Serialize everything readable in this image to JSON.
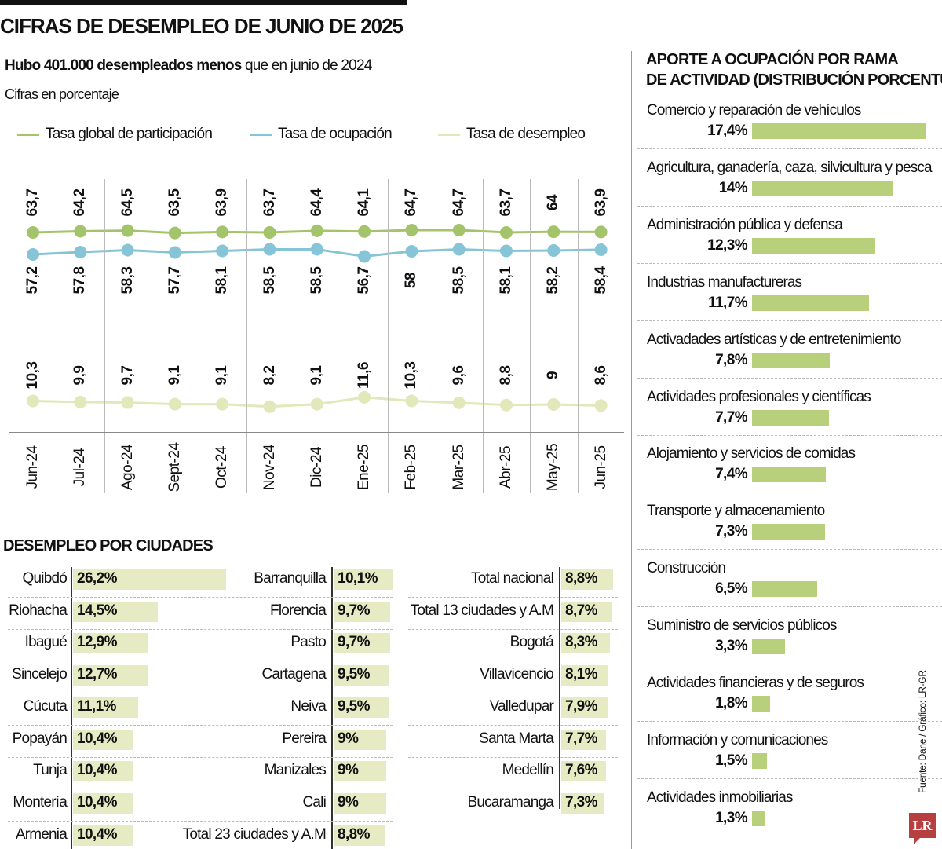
{
  "header": {
    "title": "CIFRAS DE DESEMPLEO DE JUNIO DE 2025",
    "subtitle_bold": "Hubo 401.000 desempleados menos",
    "subtitle_rest": " que en junio de 2024",
    "note": "Cifras en porcentaje"
  },
  "chart_data": [
    {
      "type": "line",
      "title": "",
      "categories": [
        "Jun-24",
        "Jul-24",
        "Ago-24",
        "Sept-24",
        "Oct-24",
        "Nov-24",
        "Dic-24",
        "Ene-25",
        "Feb-25",
        "Mar-25",
        "Abr-25",
        "May-25",
        "Jun-25"
      ],
      "legend_placement": "top",
      "grid": "vertical",
      "series": [
        {
          "name": "Tasa global de participación",
          "color": "#a3c46a",
          "values": [
            63.7,
            64.2,
            64.5,
            63.5,
            63.9,
            63.7,
            64.4,
            64.1,
            64.7,
            64.7,
            63.7,
            64,
            63.9
          ],
          "labels": [
            "63,7",
            "64,2",
            "64,5",
            "63,5",
            "63,9",
            "63,7",
            "64,4",
            "64,1",
            "64,7",
            "64,7",
            "63,7",
            "64",
            "63,9"
          ]
        },
        {
          "name": "Tasa de ocupación",
          "color": "#86c4d8",
          "values": [
            57.2,
            57.8,
            58.3,
            57.7,
            58.1,
            58.5,
            58.5,
            56.7,
            58,
            58.5,
            58.1,
            58.2,
            58.4
          ],
          "labels": [
            "57,2",
            "57,8",
            "58,3",
            "57,7",
            "58,1",
            "58,5",
            "58,5",
            "56,7",
            "58",
            "58,5",
            "58,1",
            "58,2",
            "58,4"
          ]
        },
        {
          "name": "Tasa de desempleo",
          "color": "#e3e8bb",
          "values": [
            10.3,
            9.9,
            9.7,
            9.1,
            9.1,
            8.2,
            9.1,
            11.6,
            10.3,
            9.6,
            8.8,
            9,
            8.6
          ],
          "labels": [
            "10,3",
            "9,9",
            "9,7",
            "9,1",
            "9,1",
            "8,2",
            "9,1",
            "11,6",
            "10,3",
            "9,6",
            "8,8",
            "9",
            "8,6"
          ]
        }
      ]
    },
    {
      "type": "bar",
      "title": "DESEMPLEO POR CIUDADES",
      "color": "#e6ebc3",
      "columns": [
        [
          {
            "name": "Quibdó",
            "value": 26.2,
            "label": "26,2%"
          },
          {
            "name": "Riohacha",
            "value": 14.5,
            "label": "14,5%"
          },
          {
            "name": "Ibagué",
            "value": 12.9,
            "label": "12,9%"
          },
          {
            "name": "Sincelejo",
            "value": 12.7,
            "label": "12,7%"
          },
          {
            "name": "Cúcuta",
            "value": 11.1,
            "label": "11,1%"
          },
          {
            "name": "Popayán",
            "value": 10.4,
            "label": "10,4%"
          },
          {
            "name": "Tunja",
            "value": 10.4,
            "label": "10,4%"
          },
          {
            "name": "Montería",
            "value": 10.4,
            "label": "10,4%"
          },
          {
            "name": "Armenia",
            "value": 10.4,
            "label": "10,4%"
          }
        ],
        [
          {
            "name": "Barranquilla",
            "value": 10.1,
            "label": "10,1%"
          },
          {
            "name": "Florencia",
            "value": 9.7,
            "label": "9,7%"
          },
          {
            "name": "Pasto",
            "value": 9.7,
            "label": "9,7%"
          },
          {
            "name": "Cartagena",
            "value": 9.5,
            "label": "9,5%"
          },
          {
            "name": "Neiva",
            "value": 9.5,
            "label": "9,5%"
          },
          {
            "name": "Pereira",
            "value": 9,
            "label": "9%"
          },
          {
            "name": "Manizales",
            "value": 9,
            "label": "9%"
          },
          {
            "name": "Cali",
            "value": 9,
            "label": "9%"
          },
          {
            "name": "Total 23 ciudades y A.M",
            "value": 8.8,
            "label": "8,8%"
          }
        ],
        [
          {
            "name": "Total nacional",
            "value": 8.8,
            "label": "8,8%"
          },
          {
            "name": "Total 13 ciudades y A.M",
            "value": 8.7,
            "label": "8,7%"
          },
          {
            "name": "Bogotá",
            "value": 8.3,
            "label": "8,3%"
          },
          {
            "name": "Villavicencio",
            "value": 8.1,
            "label": "8,1%"
          },
          {
            "name": "Valledupar",
            "value": 7.9,
            "label": "7,9%"
          },
          {
            "name": "Santa Marta",
            "value": 7.7,
            "label": "7,7%"
          },
          {
            "name": "Medellín",
            "value": 7.6,
            "label": "7,6%"
          },
          {
            "name": "Bucaramanga",
            "value": 7.3,
            "label": "7,3%"
          }
        ]
      ]
    },
    {
      "type": "bar",
      "title_line1": "APORTE A OCUPACIÓN POR RAMA",
      "title_line2": "DE ACTIVIDAD (DISTRIBUCIÓN PORCENTUAL)",
      "color": "#b8d07c",
      "items": [
        {
          "name": "Comercio y reparación de vehículos",
          "value": 17.4,
          "label": "17,4%"
        },
        {
          "name": "Agricultura, ganadería, caza, silvicultura y pesca",
          "value": 14,
          "label": "14%"
        },
        {
          "name": "Administración pública y defensa",
          "value": 12.3,
          "label": "12,3%"
        },
        {
          "name": "Industrias manufactureras",
          "value": 11.7,
          "label": "11,7%"
        },
        {
          "name": "Activadades artísticas y de entretenimiento",
          "value": 7.8,
          "label": "7,8%"
        },
        {
          "name": "Actividades profesionales y científicas",
          "value": 7.7,
          "label": "7,7%"
        },
        {
          "name": "Alojamiento y servicios de comidas",
          "value": 7.4,
          "label": "7,4%"
        },
        {
          "name": "Transporte y almacenamiento",
          "value": 7.3,
          "label": "7,3%"
        },
        {
          "name": "Construcción",
          "value": 6.5,
          "label": "6,5%"
        },
        {
          "name": "Suministro de servicios públicos",
          "value": 3.3,
          "label": "3,3%"
        },
        {
          "name": "Actividades financieras y de seguros",
          "value": 1.8,
          "label": "1,8%"
        },
        {
          "name": "Información y comunicaciones",
          "value": 1.5,
          "label": "1,5%"
        },
        {
          "name": "Actividades inmobiliarias",
          "value": 1.3,
          "label": "1,3%"
        }
      ]
    }
  ],
  "footer": {
    "source": "Fuente: Dane / Gráfico: LR-GR",
    "logo": "LR"
  }
}
